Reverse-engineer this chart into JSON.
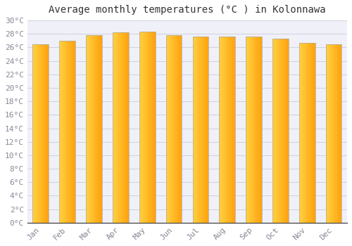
{
  "title": "Average monthly temperatures (°C ) in Kolonnawa",
  "months": [
    "Jan",
    "Feb",
    "Mar",
    "Apr",
    "May",
    "Jun",
    "Jul",
    "Aug",
    "Sep",
    "Oct",
    "Nov",
    "Dec"
  ],
  "temperatures": [
    26.5,
    27.0,
    27.8,
    28.2,
    28.3,
    27.8,
    27.6,
    27.6,
    27.6,
    27.3,
    26.7,
    26.5
  ],
  "bar_color_left": "#FFD040",
  "bar_color_right": "#FFA010",
  "bar_edge_color": "#B8860B",
  "ylim": [
    0,
    30
  ],
  "background_color": "#ffffff",
  "plot_bg_color": "#f0f0f8",
  "grid_color": "#ccccdd",
  "title_fontsize": 10,
  "tick_fontsize": 8,
  "tick_label_color": "#888899",
  "bar_width": 0.6,
  "gradient_steps": 50
}
